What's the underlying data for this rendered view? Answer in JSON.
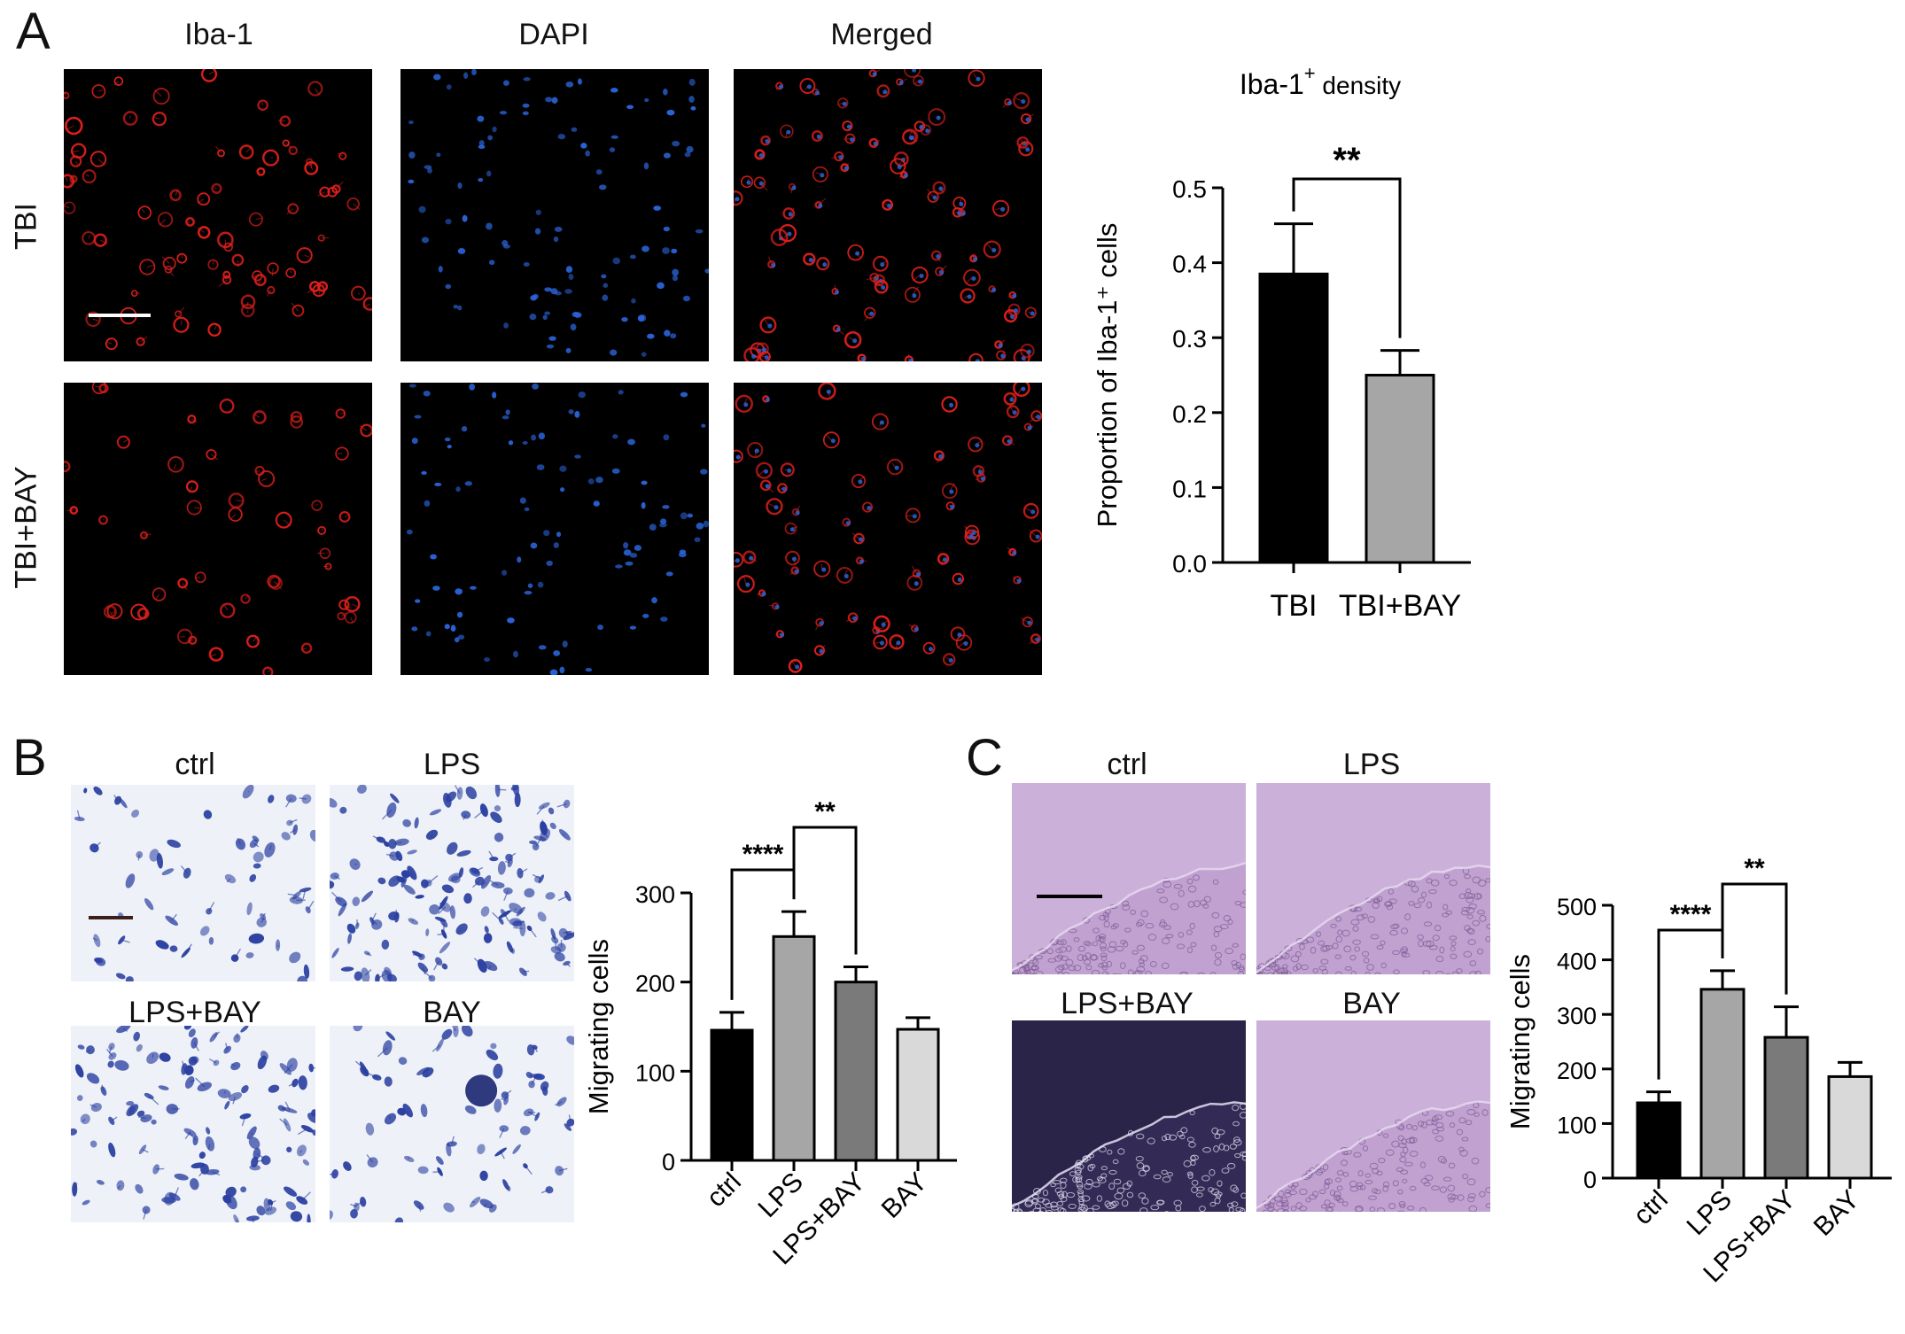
{
  "panels": {
    "A": {
      "letter": "A",
      "columns": [
        "Iba-1",
        "DAPI",
        "Merged"
      ],
      "rows": [
        "TBI",
        "TBI+BAY"
      ]
    },
    "B": {
      "letter": "B",
      "captions": [
        "ctrl",
        "LPS",
        "LPS+BAY",
        "BAY"
      ]
    },
    "C": {
      "letter": "C",
      "captions": [
        "ctrl",
        "LPS",
        "LPS+BAY",
        "BAY"
      ]
    }
  },
  "colors": {
    "black_bar": "#000000",
    "gray_bar": "#a6a6a6",
    "dark_gray_bar": "#7a7a7a",
    "light_gray_bar": "#d9d9d9",
    "iba_stain": "#e0201c",
    "dapi_stain": "#2a63d8",
    "crystal_violet": "#2a3fa0",
    "wound_bg": "#c8a8d6"
  },
  "chart_data": [
    {
      "id": "chartA",
      "type": "bar",
      "title_main": "Iba-1",
      "title_sup": "+",
      "title_rest": " density",
      "ylabel": "Proportion of Iba-1⁺ cells",
      "categories": [
        "TBI",
        "TBI+BAY"
      ],
      "values": [
        0.385,
        0.25
      ],
      "errors": [
        0.067,
        0.033
      ],
      "ylim": [
        0,
        0.5
      ],
      "yticks": [
        "0.0",
        "0.1",
        "0.2",
        "0.3",
        "0.4",
        "0.5"
      ],
      "significance": [
        {
          "from": 0,
          "to": 1,
          "label": "**"
        }
      ]
    },
    {
      "id": "chartB",
      "type": "bar",
      "ylabel": "Migrating cells",
      "categories": [
        "ctrl",
        "LPS",
        "LPS+BAY",
        "BAY"
      ],
      "values": [
        146,
        251,
        200,
        147
      ],
      "errors": [
        20,
        28,
        17,
        13
      ],
      "ylim": [
        0,
        300
      ],
      "yticks": [
        "0",
        "100",
        "200",
        "300"
      ],
      "significance": [
        {
          "from": 0,
          "to": 1,
          "label": "****"
        },
        {
          "from": 1,
          "to": 2,
          "label": "**"
        }
      ]
    },
    {
      "id": "chartC",
      "type": "bar",
      "ylabel": "Migrating cells",
      "categories": [
        "ctrl",
        "LPS",
        "LPS+BAY",
        "BAY"
      ],
      "values": [
        138,
        346,
        258,
        186
      ],
      "errors": [
        20,
        34,
        56,
        26
      ],
      "ylim": [
        0,
        500
      ],
      "yticks": [
        "0",
        "100",
        "200",
        "300",
        "400",
        "500"
      ],
      "significance": [
        {
          "from": 0,
          "to": 1,
          "label": "****"
        },
        {
          "from": 1,
          "to": 2,
          "label": "**"
        }
      ]
    }
  ]
}
